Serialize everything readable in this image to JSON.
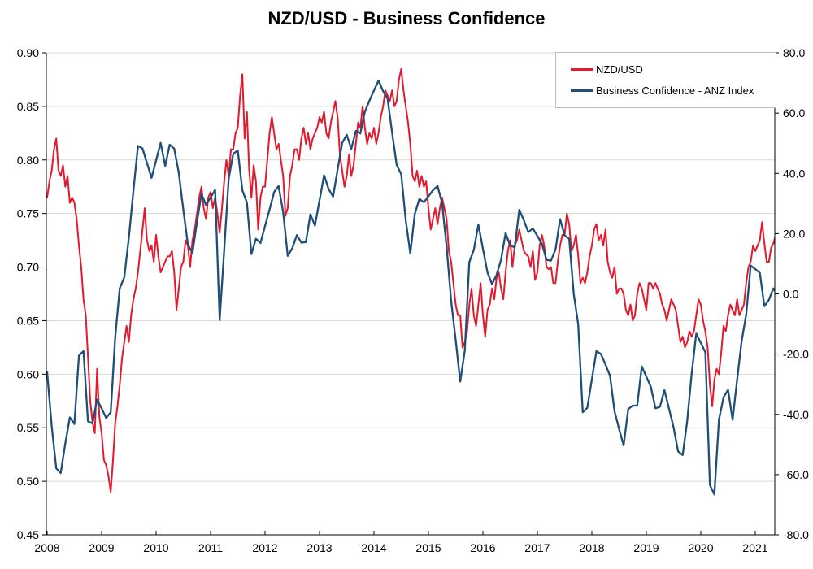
{
  "title": "NZD/USD - Business Confidence",
  "legend": {
    "items": [
      {
        "label": "NZD/USD",
        "color": "#e3192d"
      },
      {
        "label": "Business Confidence - ANZ Index",
        "color": "#1f4e79"
      }
    ]
  },
  "chart_data": {
    "type": "line",
    "title": "NZD/USD - Business Confidence",
    "grid": "horizontal-only",
    "legend_position": "top-right-inside",
    "axis_color": "#000000",
    "gridline_color": "#d9d9d9",
    "x_axis": {
      "min": 2008.0,
      "max": 2021.42,
      "tick_years": [
        2008,
        2009,
        2010,
        2011,
        2012,
        2013,
        2014,
        2015,
        2016,
        2017,
        2018,
        2019,
        2020,
        2021
      ]
    },
    "y_axis_left": {
      "series": "NZD/USD",
      "min": 0.45,
      "max": 0.9,
      "tick_values": [
        0.9,
        0.85,
        0.8,
        0.75,
        0.7,
        0.65,
        0.6,
        0.55,
        0.5,
        0.45
      ],
      "tick_labels": [
        "0.90",
        "0.85",
        "0.80",
        "0.75",
        "0.70",
        "0.65",
        "0.60",
        "0.55",
        "0.50",
        "0.45"
      ]
    },
    "y_axis_right": {
      "series": "Business Confidence - ANZ Index",
      "min": -80.0,
      "max": 80.0,
      "tick_values": [
        80,
        60,
        40,
        20,
        0,
        -20,
        -40,
        -60,
        -80
      ],
      "tick_labels": [
        "80.0",
        "60.0",
        "40.0",
        "20.0",
        "0.0",
        "-20.0",
        "-40.0",
        "-60.0",
        "-80.0"
      ]
    },
    "series": [
      {
        "name": "NZD/USD",
        "axis": "left",
        "color": "#e3192d",
        "stroke_width": 2,
        "x_start": 2008.0,
        "x_step_years": 0.0416667,
        "values": [
          0.765,
          0.78,
          0.79,
          0.81,
          0.82,
          0.79,
          0.785,
          0.795,
          0.775,
          0.785,
          0.76,
          0.765,
          0.76,
          0.745,
          0.72,
          0.7,
          0.67,
          0.655,
          0.615,
          0.575,
          0.555,
          0.545,
          0.605,
          0.56,
          0.545,
          0.52,
          0.515,
          0.505,
          0.49,
          0.52,
          0.555,
          0.57,
          0.59,
          0.615,
          0.63,
          0.645,
          0.63,
          0.655,
          0.67,
          0.68,
          0.695,
          0.715,
          0.735,
          0.755,
          0.725,
          0.715,
          0.72,
          0.705,
          0.73,
          0.71,
          0.695,
          0.7,
          0.705,
          0.71,
          0.71,
          0.715,
          0.695,
          0.66,
          0.68,
          0.7,
          0.705,
          0.725,
          0.72,
          0.7,
          0.725,
          0.735,
          0.75,
          0.765,
          0.775,
          0.755,
          0.745,
          0.765,
          0.77,
          0.755,
          0.765,
          0.75,
          0.732,
          0.755,
          0.78,
          0.8,
          0.785,
          0.81,
          0.81,
          0.825,
          0.83,
          0.86,
          0.88,
          0.82,
          0.845,
          0.79,
          0.765,
          0.795,
          0.78,
          0.735,
          0.765,
          0.775,
          0.775,
          0.8,
          0.825,
          0.84,
          0.825,
          0.81,
          0.815,
          0.8,
          0.785,
          0.748,
          0.755,
          0.785,
          0.795,
          0.81,
          0.81,
          0.8,
          0.82,
          0.83,
          0.815,
          0.825,
          0.81,
          0.82,
          0.825,
          0.83,
          0.84,
          0.835,
          0.845,
          0.825,
          0.82,
          0.835,
          0.845,
          0.855,
          0.84,
          0.805,
          0.79,
          0.775,
          0.785,
          0.805,
          0.785,
          0.795,
          0.815,
          0.835,
          0.83,
          0.85,
          0.83,
          0.815,
          0.825,
          0.82,
          0.83,
          0.815,
          0.825,
          0.84,
          0.85,
          0.865,
          0.86,
          0.855,
          0.865,
          0.85,
          0.855,
          0.875,
          0.885,
          0.865,
          0.85,
          0.835,
          0.815,
          0.785,
          0.78,
          0.79,
          0.775,
          0.785,
          0.775,
          0.78,
          0.755,
          0.735,
          0.745,
          0.755,
          0.74,
          0.755,
          0.765,
          0.755,
          0.745,
          0.715,
          0.705,
          0.685,
          0.665,
          0.655,
          0.655,
          0.625,
          0.63,
          0.64,
          0.665,
          0.68,
          0.655,
          0.645,
          0.665,
          0.685,
          0.655,
          0.635,
          0.66,
          0.665,
          0.68,
          0.67,
          0.69,
          0.695,
          0.68,
          0.67,
          0.695,
          0.715,
          0.725,
          0.7,
          0.72,
          0.725,
          0.735,
          0.725,
          0.715,
          0.712,
          0.71,
          0.7,
          0.715,
          0.688,
          0.695,
          0.72,
          0.73,
          0.72,
          0.7,
          0.698,
          0.7,
          0.685,
          0.685,
          0.705,
          0.72,
          0.73,
          0.73,
          0.75,
          0.74,
          0.715,
          0.72,
          0.73,
          0.71,
          0.685,
          0.69,
          0.685,
          0.695,
          0.71,
          0.72,
          0.735,
          0.74,
          0.725,
          0.73,
          0.72,
          0.735,
          0.705,
          0.695,
          0.69,
          0.7,
          0.675,
          0.68,
          0.68,
          0.675,
          0.66,
          0.655,
          0.665,
          0.65,
          0.655,
          0.675,
          0.685,
          0.68,
          0.67,
          0.66,
          0.685,
          0.685,
          0.68,
          0.685,
          0.68,
          0.675,
          0.665,
          0.66,
          0.65,
          0.66,
          0.67,
          0.665,
          0.66,
          0.645,
          0.63,
          0.635,
          0.625,
          0.63,
          0.64,
          0.635,
          0.64,
          0.655,
          0.67,
          0.665,
          0.65,
          0.64,
          0.625,
          0.59,
          0.57,
          0.595,
          0.605,
          0.6,
          0.62,
          0.645,
          0.64,
          0.655,
          0.665,
          0.66,
          0.655,
          0.67,
          0.655,
          0.66,
          0.665,
          0.685,
          0.7,
          0.705,
          0.72,
          0.715,
          0.72,
          0.725,
          0.742,
          0.722,
          0.705,
          0.705,
          0.718,
          0.722,
          0.73,
          0.718
        ]
      },
      {
        "name": "Business Confidence - ANZ Index",
        "axis": "right",
        "color": "#1f4e79",
        "stroke_width": 2.3,
        "x_start": 2008.0,
        "x_step_years": 0.0833333,
        "values": [
          -26,
          -43.9,
          -57.9,
          -59.5,
          -49.7,
          -41,
          -43.2,
          -20.5,
          -19,
          -42.3,
          -43,
          -35.1,
          -38,
          -41.2,
          -39.3,
          -14.5,
          1.9,
          5.5,
          18.7,
          34.2,
          49.1,
          48.3,
          43.4,
          38.5,
          44.3,
          50.1,
          42.5,
          49.5,
          48.2,
          40.2,
          27.9,
          16.4,
          13.5,
          23.7,
          33.2,
          29.5,
          32,
          34.5,
          -8.7,
          14.2,
          38.3,
          46.5,
          47.6,
          34.4,
          30.3,
          13.2,
          18.3,
          16.9,
          22.5,
          28,
          33.8,
          35.8,
          27.1,
          12.6,
          15.1,
          19.5,
          17,
          17.2,
          26.4,
          22.7,
          31,
          39.4,
          34.8,
          32.3,
          41.3,
          50.1,
          52.8,
          48.1,
          54.1,
          53.2,
          60.5,
          64.1,
          67.5,
          70.8,
          67.3,
          64.8,
          53.5,
          42.8,
          39.7,
          24.4,
          13.4,
          26.5,
          31.5,
          30.4,
          32.4,
          34.4,
          35.8,
          30.2,
          15.7,
          -2.3,
          -15.3,
          -29.1,
          -18.9,
          10.5,
          14.6,
          23,
          15,
          7.1,
          3.2,
          6.2,
          11.3,
          20.2,
          16,
          15.5,
          27.9,
          24.5,
          20.5,
          21.7,
          19.2,
          16.6,
          11.3,
          11,
          14.7,
          24.8,
          19.4,
          18.3,
          0,
          -10.1,
          -39.3,
          -37.8,
          -28.4,
          -19,
          -20,
          -23.4,
          -27.2,
          -39,
          -44.9,
          -50.3,
          -38.3,
          -37.1,
          -37.1,
          -24.1,
          -27.5,
          -30.9,
          -38,
          -37.5,
          -32,
          -38.1,
          -44.3,
          -52.3,
          -53.5,
          -42.4,
          -26.4,
          -13.2,
          -16.3,
          -19.4,
          -63.5,
          -66.6,
          -41.8,
          -34.4,
          -31.8,
          -41.8,
          -28.5,
          -15.7,
          -6.9,
          9.4,
          8.2,
          7,
          -4.1,
          -2,
          1.8,
          -0.6
        ]
      }
    ]
  }
}
